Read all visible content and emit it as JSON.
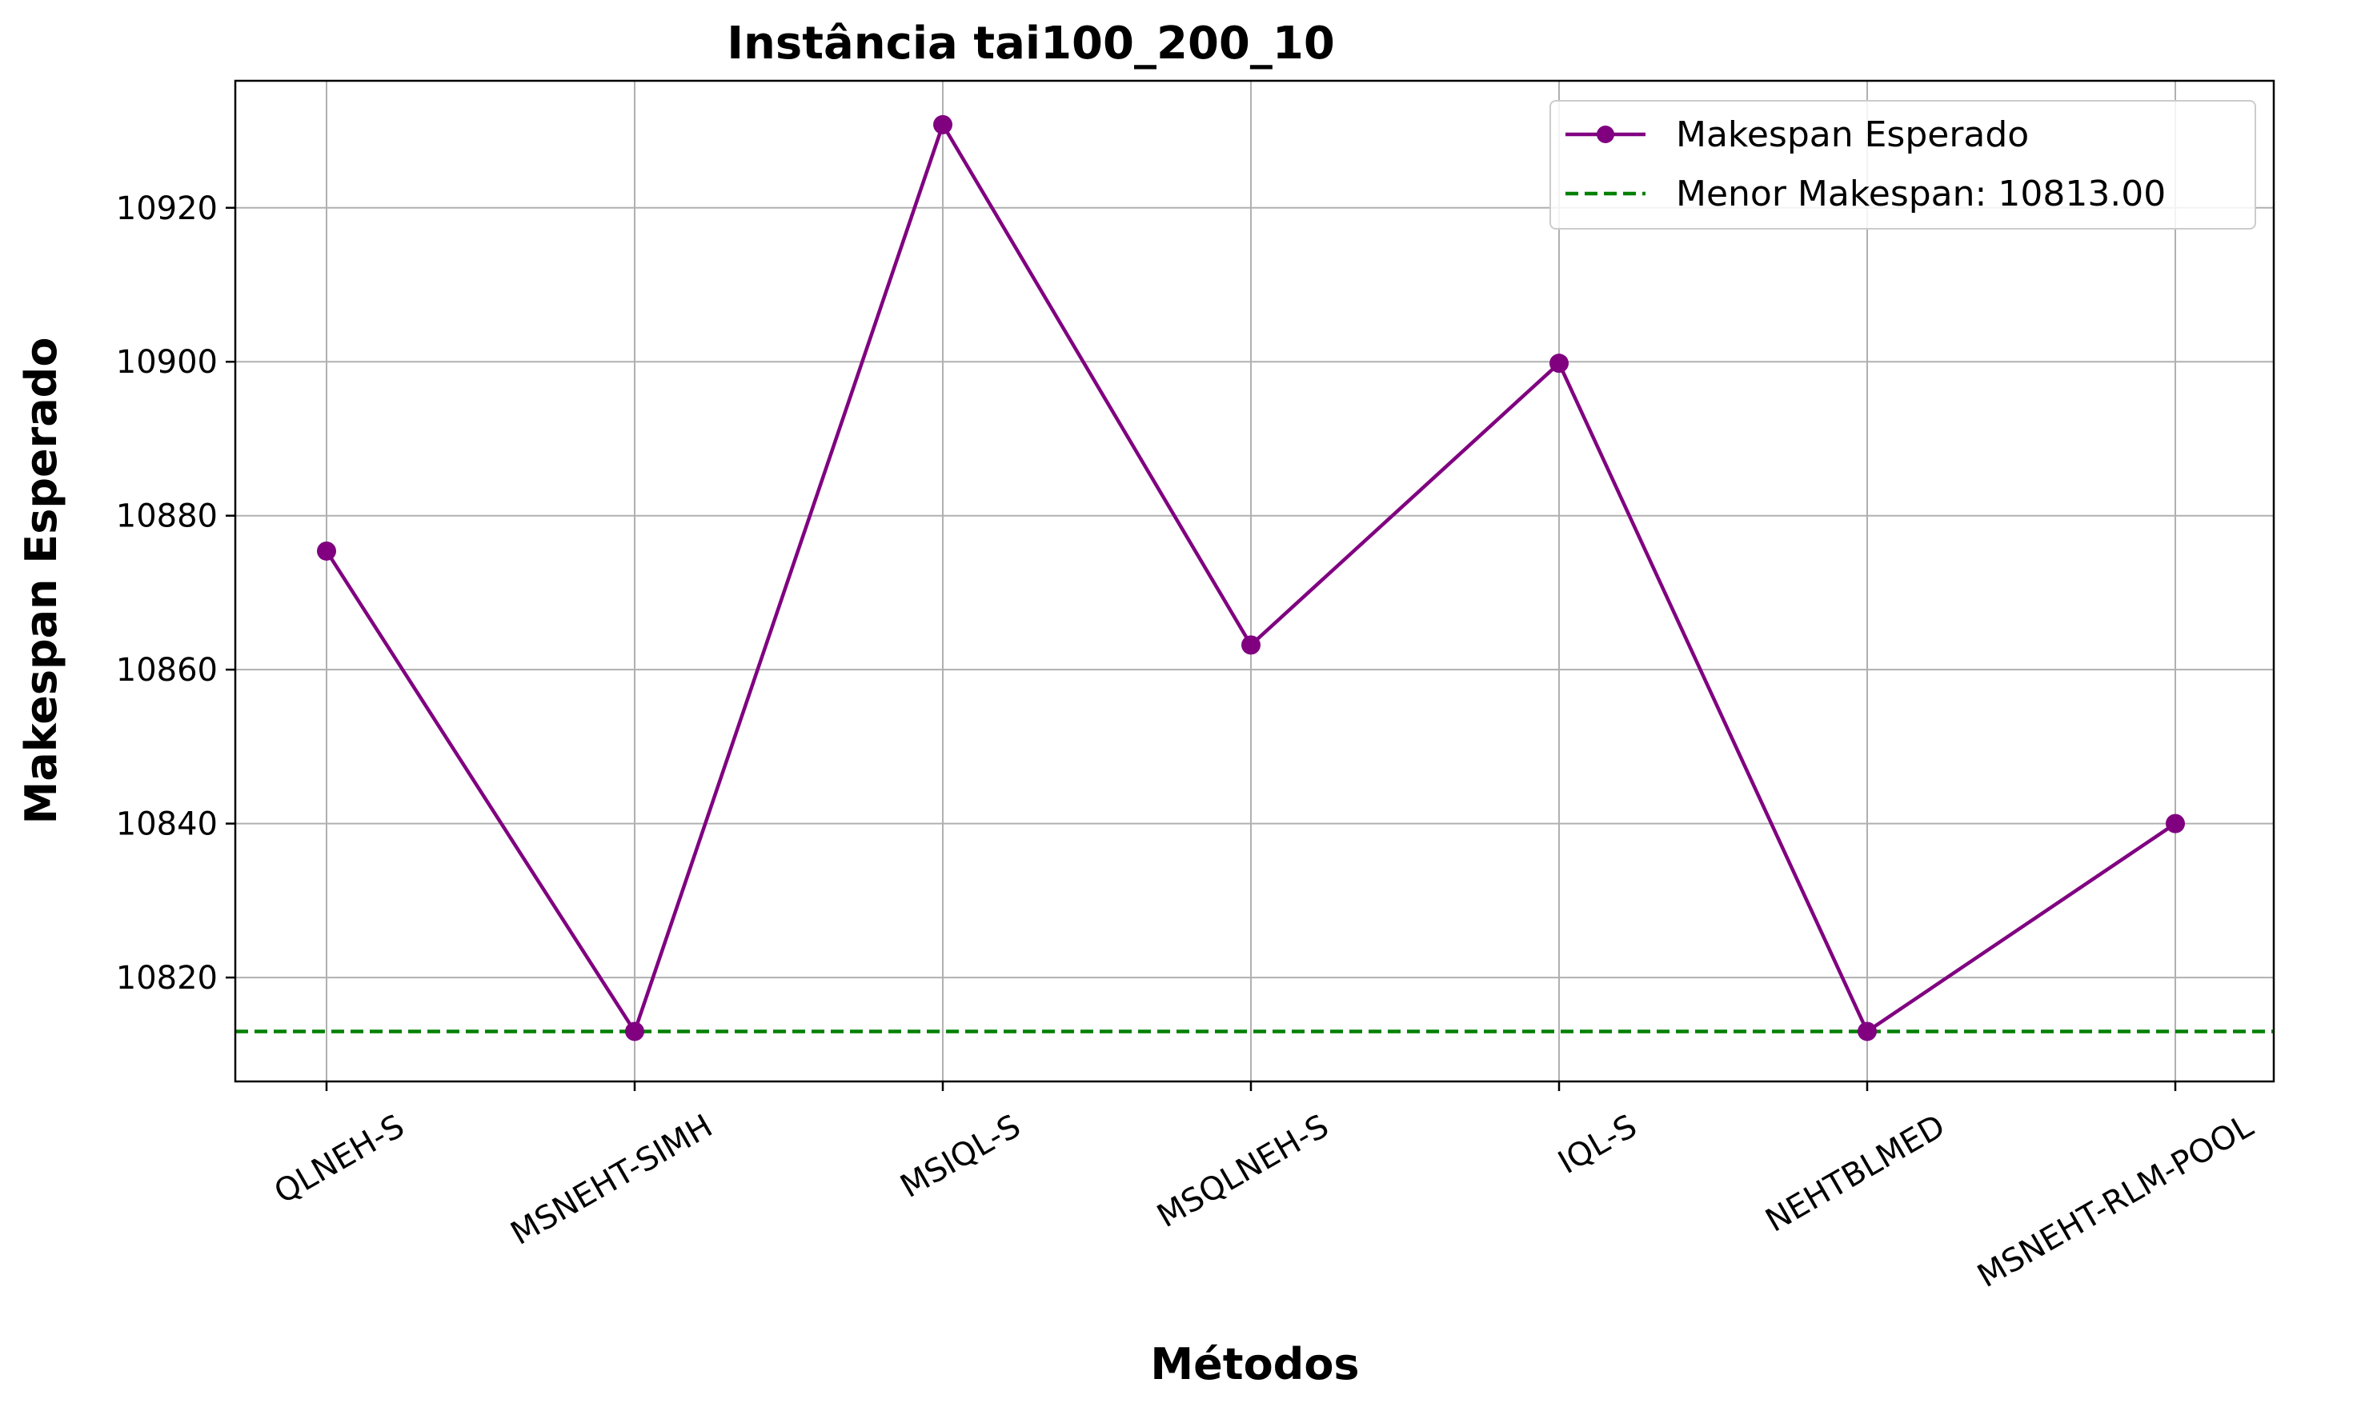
{
  "chart_data": {
    "type": "line",
    "title": "Instância tai100_200_10",
    "xlabel": "Métodos",
    "ylabel": "Makespan Esperado",
    "categories": [
      "QLNEH-S",
      "MSNEHT-SIMH",
      "MSIQL-S",
      "MSQLNEH-S",
      "IQL-S",
      "NEHTBLMED",
      "MSNEHT-RLM-POOL"
    ],
    "series": [
      {
        "name": "Makespan Esperado",
        "values": [
          10875.4,
          10813.0,
          10930.8,
          10863.2,
          10899.8,
          10813.0,
          10840.0
        ],
        "color": "#800080"
      }
    ],
    "reference_line": {
      "label": "Menor Makespan: 10813.00",
      "value": 10813.0,
      "color": "#008000",
      "style": "dashed"
    },
    "ylim": [
      10806.5,
      10936.5
    ],
    "yticks": [
      10820,
      10840,
      10860,
      10880,
      10900,
      10920
    ],
    "grid": true,
    "legend_position": "top-right"
  }
}
